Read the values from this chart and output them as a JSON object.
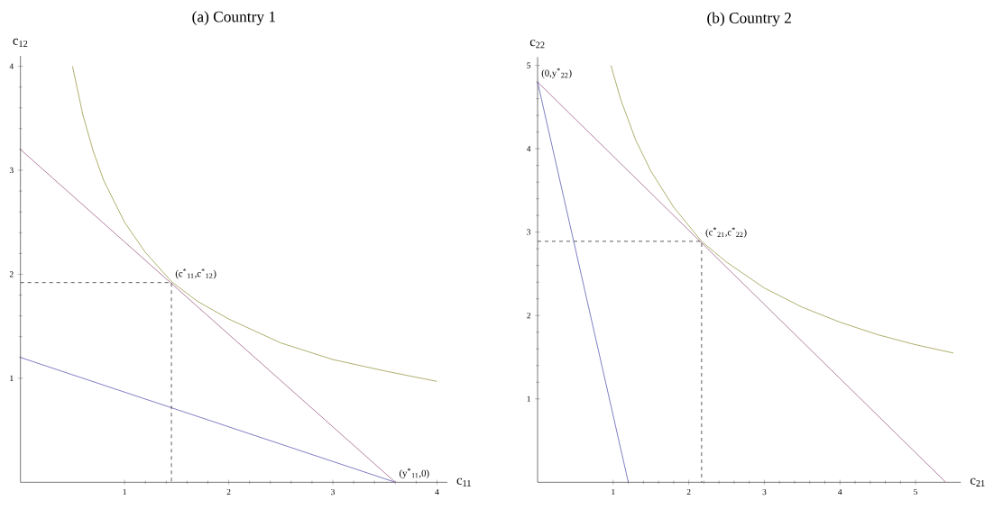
{
  "chart_data": [
    {
      "type": "line",
      "title": "(a) Country 1",
      "xlabel": "c$_{11}$",
      "ylabel": "c$_{12}$",
      "xlim": [
        0,
        4.1
      ],
      "ylim": [
        0,
        4.1
      ],
      "xticks": [
        1,
        2,
        3,
        4
      ],
      "yticks": [
        1,
        2,
        3,
        4
      ],
      "series": [
        {
          "color": "#5e5eb4",
          "x": [
            0,
            3.6
          ],
          "values": [
            1.2,
            0
          ]
        },
        {
          "color": "#a0628a",
          "x": [
            0,
            3.6
          ],
          "values": [
            3.2,
            0
          ]
        },
        {
          "color": "#9a9a4a",
          "x": [
            0.5,
            0.6,
            0.7,
            0.8,
            1.0,
            1.2,
            1.45,
            1.7,
            2,
            2.5,
            3,
            3.5,
            4
          ],
          "values": [
            4.0,
            3.53,
            3.18,
            2.9,
            2.5,
            2.21,
            1.93,
            1.74,
            1.57,
            1.34,
            1.18,
            1.07,
            0.97
          ]
        },
        {
          "color": "#333333",
          "line_style": "dashed",
          "x": [
            0,
            1.45,
            1.45
          ],
          "values": [
            1.92,
            1.92,
            0
          ]
        }
      ],
      "annotations": [
        {
          "text": "(c$^{*}$$_{11}$,c$^{*}$$_{12}$)",
          "x": 1.45,
          "y": 1.92
        },
        {
          "text": "(y$^{*}$$_{11}$,0)",
          "x": 3.6,
          "y": 0
        }
      ]
    },
    {
      "type": "line",
      "title": "(b) Country 2",
      "xlabel": "c$_{21}$",
      "ylabel": "c$_{22}$",
      "xlim": [
        0,
        5.6
      ],
      "ylim": [
        0,
        5.1
      ],
      "xticks": [
        1,
        2,
        3,
        4,
        5
      ],
      "yticks": [
        1,
        2,
        3,
        4,
        5
      ],
      "series": [
        {
          "color": "#5e5eb4",
          "x": [
            0,
            1.2
          ],
          "values": [
            4.8,
            0
          ]
        },
        {
          "color": "#a0628a",
          "x": [
            0,
            5.4
          ],
          "values": [
            4.8,
            0
          ]
        },
        {
          "color": "#9a9a4a",
          "x": [
            0.97,
            1.1,
            1.3,
            1.5,
            1.8,
            2.17,
            2.5,
            3,
            3.5,
            4,
            4.5,
            5,
            5.5
          ],
          "values": [
            5.0,
            4.59,
            4.1,
            3.73,
            3.3,
            2.89,
            2.64,
            2.33,
            2.1,
            1.92,
            1.77,
            1.65,
            1.55
          ]
        },
        {
          "color": "#333333",
          "line_style": "dashed",
          "x": [
            0,
            2.17,
            2.17
          ],
          "values": [
            2.89,
            2.89,
            0
          ]
        }
      ],
      "annotations": [
        {
          "text": "(c$^{*}$$_{21}$,c$^{*}$$_{22}$)",
          "x": 2.17,
          "y": 2.89
        },
        {
          "text": "(0,y$^{*}$$_{22}$)",
          "x": 0,
          "y": 4.8
        }
      ]
    }
  ]
}
